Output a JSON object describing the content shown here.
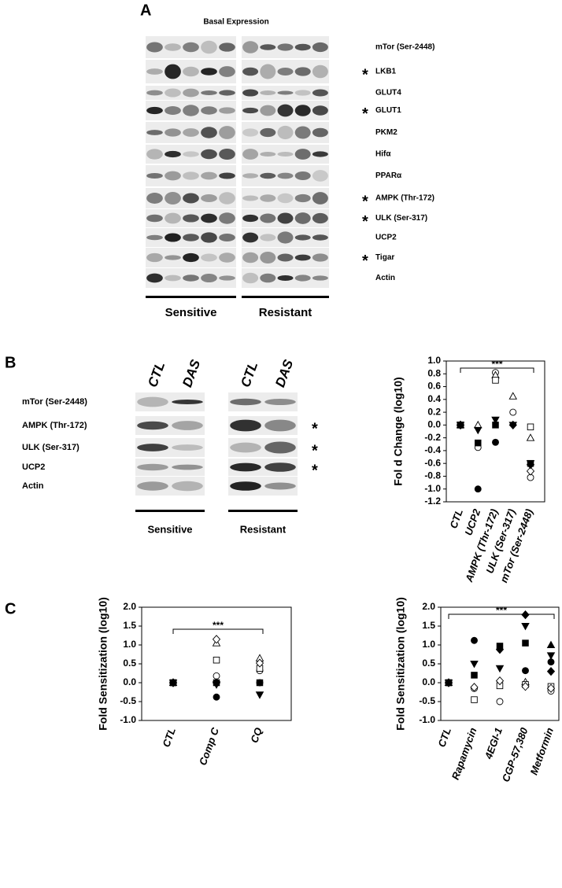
{
  "panel_a": {
    "letter": "A",
    "title": "Basal Expression",
    "rows": [
      {
        "label": "mTor (Ser-2448)"
      },
      {
        "label": "LKB1",
        "mark": "*"
      },
      {
        "label": "GLUT4"
      },
      {
        "label": "GLUT1",
        "mark": "*"
      },
      {
        "label": "PKM2"
      },
      {
        "label": "Hifα"
      },
      {
        "label": "PPARα"
      },
      {
        "label": "AMPK (Thr-172)",
        "mark": "*"
      },
      {
        "label": "ULK (Ser-317)",
        "mark": "*"
      },
      {
        "label": "UCP2"
      },
      {
        "label": "Tigar",
        "mark": "*"
      },
      {
        "label": "Actin"
      }
    ],
    "groups": [
      "Sensitive",
      "Resistant"
    ]
  },
  "panel_b": {
    "letter": "B",
    "lanes": [
      "CTL",
      "DAS",
      "CTL",
      "DAS"
    ],
    "rows": [
      {
        "label": "mTor (Ser-2448)"
      },
      {
        "label": "AMPK (Thr-172)",
        "mark": "*"
      },
      {
        "label": "ULK (Ser-317)",
        "mark": "*"
      },
      {
        "label": "UCP2",
        "mark": "*"
      },
      {
        "label": "Actin"
      }
    ],
    "groups": [
      "Sensitive",
      "Resistant"
    ]
  },
  "panel_c": {
    "letter": "C"
  },
  "chart_data": [
    {
      "type": "scatter",
      "y_label": "Fol d Change (log10)",
      "annotation": "***",
      "color": "#000000",
      "categories": [
        "CTL",
        "UCP2",
        "AMPK (Thr-172)",
        "ULK (Ser-317)",
        "mTor (Ser-2448)"
      ],
      "ylim": [
        -1.2,
        1.0
      ],
      "yticks": [
        {
          "value": 1,
          "label": "1.0"
        },
        0.8,
        0.6,
        0.4,
        0.2,
        {
          "value": 0,
          "label": "0.0"
        },
        -0.2,
        -0.4,
        -0.6,
        -0.8,
        {
          "value": -1,
          "label": "-1.0"
        },
        -1.2
      ],
      "series": [
        {
          "marker": "circle",
          "filled": false,
          "values": [
            0,
            -0.35,
            0.82,
            0.2,
            -0.82
          ]
        },
        {
          "marker": "circle",
          "filled": true,
          "values": [
            0,
            -1.0,
            -0.27,
            null,
            null
          ]
        },
        {
          "marker": "triangle-up",
          "filled": false,
          "values": [
            0,
            0,
            0.78,
            0.45,
            -0.2
          ]
        },
        {
          "marker": "triangle-down",
          "filled": true,
          "values": [
            0,
            -0.08,
            0.08,
            0,
            -0.6
          ]
        },
        {
          "marker": "square",
          "filled": false,
          "values": [
            0,
            null,
            0.7,
            null,
            -0.03
          ]
        },
        {
          "marker": "square",
          "filled": true,
          "values": [
            0,
            -0.28,
            0,
            null,
            -0.6
          ]
        },
        {
          "marker": "diamond",
          "filled": false,
          "values": [
            0,
            null,
            null,
            null,
            -0.72
          ]
        },
        {
          "marker": "diamond",
          "filled": true,
          "values": [
            0,
            null,
            null,
            0,
            -0.62
          ]
        }
      ]
    },
    {
      "type": "scatter",
      "y_label": "Fold Sensitization (log10)",
      "annotation": "***",
      "color": "#000000",
      "categories": [
        "CTL",
        "Comp C",
        "CQ"
      ],
      "ylim": [
        -1.0,
        2.0
      ],
      "yticks": [
        {
          "value": 2,
          "label": "2.0"
        },
        1.5,
        {
          "value": 1,
          "label": "1.0"
        },
        0.5,
        {
          "value": 0,
          "label": "0.0"
        },
        -0.5,
        {
          "value": -1,
          "label": "-1.0"
        }
      ],
      "series": [
        {
          "marker": "circle",
          "filled": false,
          "values": [
            0,
            0.18,
            0.32
          ]
        },
        {
          "marker": "circle",
          "filled": true,
          "values": [
            0,
            -0.38,
            0
          ]
        },
        {
          "marker": "triangle-up",
          "filled": false,
          "values": [
            0,
            1.05,
            0.65
          ]
        },
        {
          "marker": "triangle-down",
          "filled": true,
          "values": [
            0,
            -0.05,
            -0.32
          ]
        },
        {
          "marker": "square",
          "filled": false,
          "values": [
            0,
            0.6,
            0.38
          ]
        },
        {
          "marker": "square",
          "filled": true,
          "values": [
            0,
            0,
            0
          ]
        },
        {
          "marker": "diamond",
          "filled": false,
          "values": [
            0,
            1.15,
            0.52
          ]
        },
        {
          "marker": "diamond",
          "filled": true,
          "values": [
            0,
            0,
            null
          ]
        }
      ]
    },
    {
      "type": "scatter",
      "y_label": "Fold Sensitization (log10)",
      "annotation": "***",
      "color": "#000000",
      "categories": [
        "CTL",
        "Rapamycin",
        "4EGI-1",
        "CGP-57,380",
        "Metformin"
      ],
      "ylim": [
        -1.0,
        2.0
      ],
      "yticks": [
        {
          "value": 2,
          "label": "2.0"
        },
        1.5,
        {
          "value": 1,
          "label": "1.0"
        },
        0.5,
        {
          "value": 0,
          "label": "0.0"
        },
        -0.5,
        {
          "value": -1,
          "label": "-1.0"
        }
      ],
      "series": [
        {
          "marker": "circle",
          "filled": false,
          "values": [
            0,
            -0.15,
            -0.5,
            null,
            -0.22
          ]
        },
        {
          "marker": "circle",
          "filled": true,
          "values": [
            0,
            1.12,
            null,
            0.32,
            0.55
          ]
        },
        {
          "marker": "triangle-up",
          "filled": false,
          "values": [
            0,
            null,
            null,
            0.02,
            null
          ]
        },
        {
          "marker": "triangle-up",
          "filled": true,
          "values": [
            null,
            null,
            null,
            null,
            1.0
          ]
        },
        {
          "marker": "triangle-down",
          "filled": true,
          "values": [
            0,
            0.5,
            0.38,
            1.5,
            0.72
          ]
        },
        {
          "marker": "square",
          "filled": false,
          "values": [
            0,
            -0.45,
            -0.08,
            -0.05,
            -0.1
          ]
        },
        {
          "marker": "square",
          "filled": true,
          "values": [
            0,
            0.2,
            0.97,
            1.05,
            null
          ]
        },
        {
          "marker": "diamond",
          "filled": false,
          "values": [
            0,
            -0.12,
            0.05,
            -0.1,
            -0.15
          ]
        },
        {
          "marker": "diamond",
          "filled": true,
          "values": [
            0,
            null,
            0.88,
            1.8,
            0.3
          ]
        }
      ]
    }
  ]
}
